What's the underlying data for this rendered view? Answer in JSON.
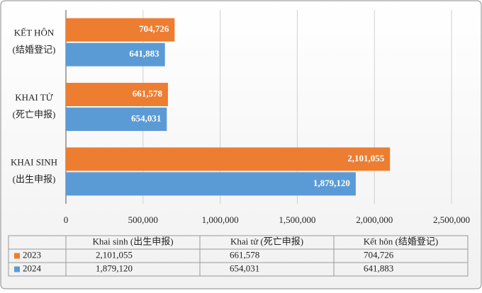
{
  "chart_data": {
    "type": "bar",
    "orientation": "horizontal",
    "categories": [
      "KHAI SINH",
      "KHAI TỬ",
      "KẾT HÔN"
    ],
    "category_subtitles": [
      "(出生申报)",
      "(死亡申报)",
      "(结婚登记)"
    ],
    "series": [
      {
        "name": "2023",
        "color": "#ed7d31",
        "values": [
          2101055,
          661578,
          704726
        ],
        "value_labels": [
          "2,101,055",
          "661,578",
          "704,726"
        ]
      },
      {
        "name": "2024",
        "color": "#5b9bd5",
        "values": [
          1879120,
          654031,
          641883
        ],
        "value_labels": [
          "1,879,120",
          "654,031",
          "641,883"
        ]
      }
    ],
    "xlim": [
      0,
      2500000
    ],
    "xticks": [
      0,
      {
        "value": 500000,
        "label": "500,000"
      },
      {
        "value": 1000000,
        "label": "1,000,000"
      },
      {
        "value": 1500000,
        "label": "1,500,000"
      },
      {
        "value": 2000000,
        "label": "2,000,000"
      },
      {
        "value": 2500000,
        "label": "2,500,000"
      }
    ],
    "grid": true,
    "table_headers": [
      "Khai sinh (出生申报)",
      "Khai tử (死亡申报)",
      "Kết hôn (结婚登记)"
    ]
  }
}
